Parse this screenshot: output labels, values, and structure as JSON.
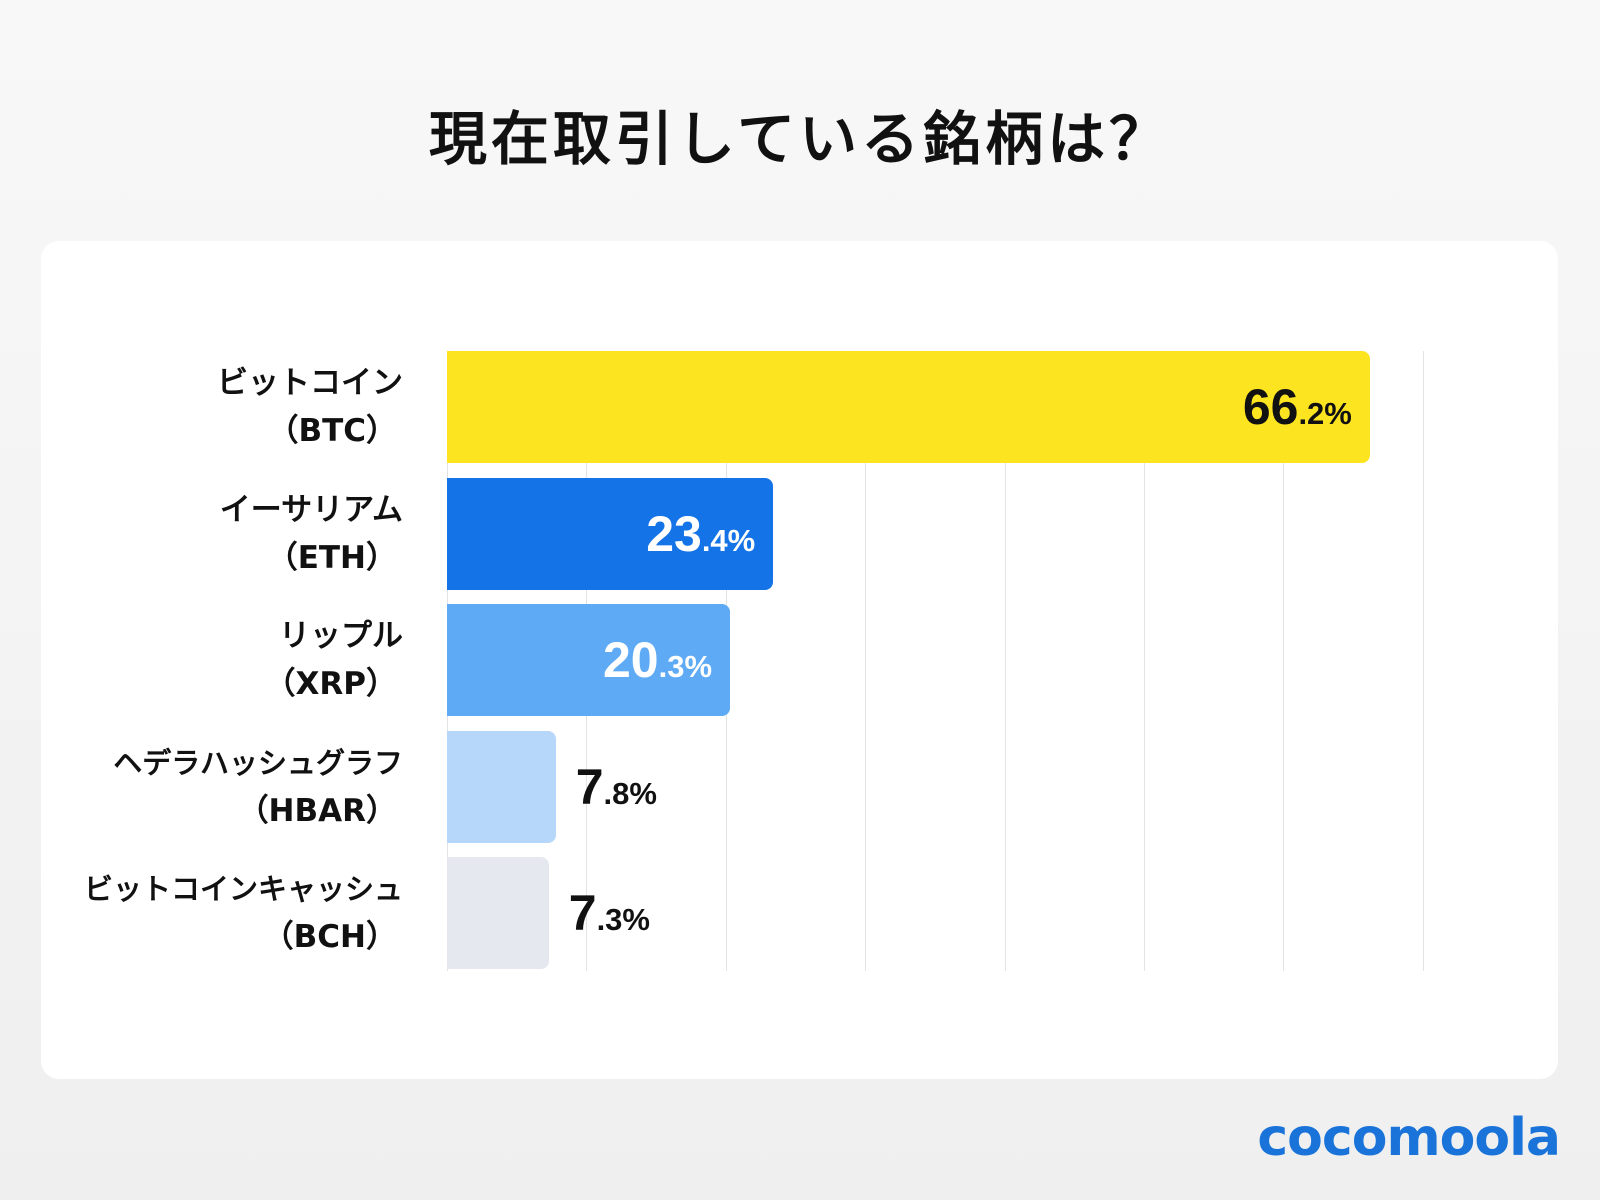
{
  "title": "現在取引している銘柄は？",
  "logo": "cocomoola",
  "chart_data": {
    "type": "bar",
    "orientation": "horizontal",
    "title": "現在取引している銘柄は？",
    "categories": [
      {
        "name": "ビットコイン",
        "ticker": "（BTC）"
      },
      {
        "name": "イーサリアム",
        "ticker": "（ETH）"
      },
      {
        "name": "リップル",
        "ticker": "（XRP）"
      },
      {
        "name": "ヘデラハッシュグラフ",
        "ticker": "（HBAR）"
      },
      {
        "name": "ビットコインキャッシュ",
        "ticker": "（BCH）"
      }
    ],
    "values": [
      66.2,
      23.4,
      20.3,
      7.8,
      7.3
    ],
    "unit": "%",
    "colors": [
      "#fde421",
      "#1473e6",
      "#5eaaf5",
      "#b6d7fa",
      "#e5e8ef"
    ],
    "label_colors": [
      "#111111",
      "#ffffff",
      "#ffffff",
      "#111111",
      "#111111"
    ],
    "xlim": [
      0,
      70
    ],
    "grid": true
  }
}
